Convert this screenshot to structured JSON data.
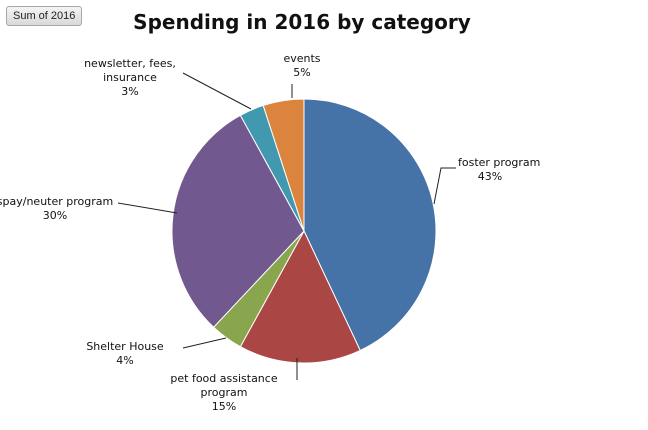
{
  "field_button": {
    "label": "Sum of 2016"
  },
  "chart_data": {
    "type": "pie",
    "title": "Spending in 2016 by category",
    "slices": [
      {
        "label": "foster program",
        "percent_label": "43%",
        "value": 43,
        "color": "#4572A7"
      },
      {
        "label": "pet food assistance program",
        "percent_label": "15%",
        "value": 15,
        "color": "#AA4643"
      },
      {
        "label": "Shelter House",
        "percent_label": "4%",
        "value": 4,
        "color": "#89A54E"
      },
      {
        "label": "spay/neuter program",
        "percent_label": "30%",
        "value": 30,
        "color": "#71588F"
      },
      {
        "label": "newsletter, fees, insurance",
        "percent_label": "3%",
        "value": 3,
        "color": "#4198AF"
      },
      {
        "label": "events",
        "percent_label": "5%",
        "value": 5,
        "color": "#DB843D"
      }
    ],
    "legend": "none",
    "data_labels": "outside with leader lines"
  }
}
